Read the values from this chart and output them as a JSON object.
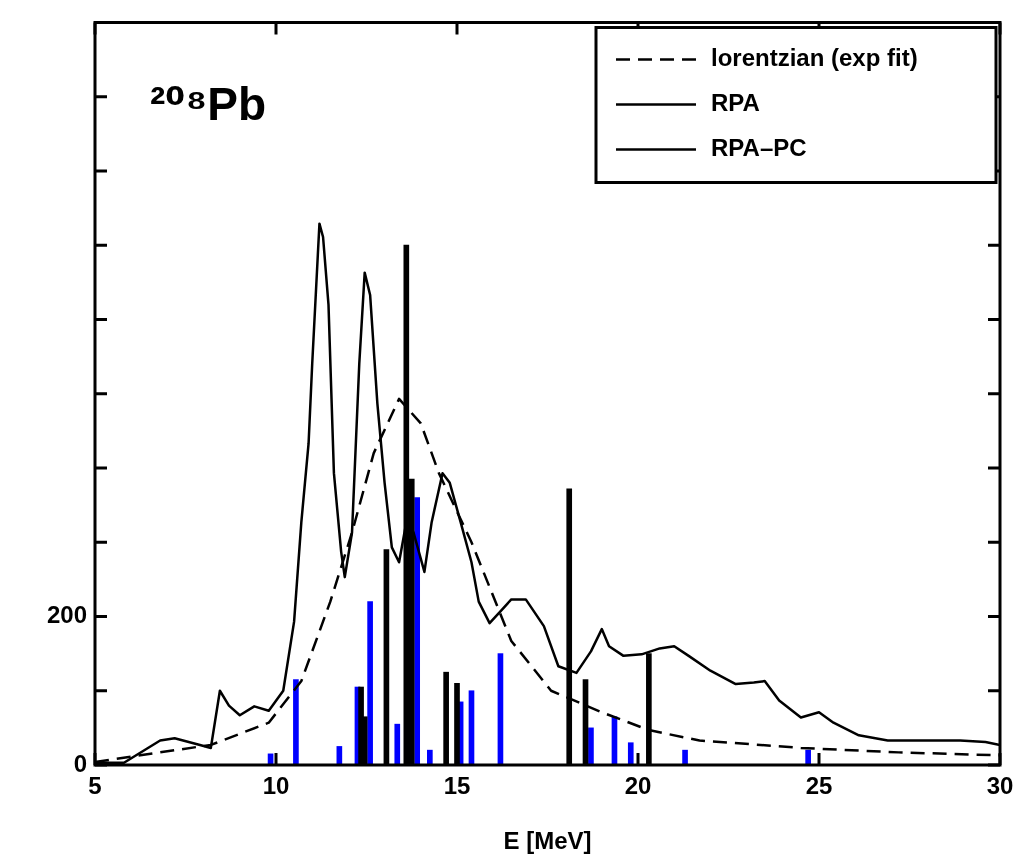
{
  "chart_data": {
    "type": "line",
    "title": "²⁰⁸Pb",
    "xlabel": "E [MeV]",
    "xlim": [
      5,
      30
    ],
    "xticks": [
      5,
      10,
      15,
      20,
      25,
      30
    ],
    "ylim": [
      0,
      1000
    ],
    "yticks": [
      0,
      {
        "value": 100,
        "label": null
      },
      200,
      {
        "value": 300,
        "label": null
      },
      {
        "value": 400,
        "label": null
      },
      {
        "value": 500,
        "label": null
      },
      {
        "value": 600,
        "label": null
      },
      {
        "value": 700,
        "label": null
      },
      {
        "value": 800,
        "label": null
      },
      {
        "value": 900,
        "label": null
      }
    ],
    "grid": false,
    "legend": "top right",
    "marker": "none",
    "series": [
      {
        "name": "lorentzian (exp fit)",
        "line_style": "dashed",
        "color": "#000000",
        "x": [
          5,
          6.8,
          8.2,
          9.8,
          10.7,
          11.5,
          12.1,
          12.7,
          13.4,
          14.0,
          14.5,
          15.4,
          16.5,
          17.6,
          19.0,
          20.3,
          21.7,
          24.5,
          27.2,
          30
        ],
        "values": [
          4,
          17,
          27,
          57,
          113,
          220,
          313,
          420,
          493,
          460,
          393,
          300,
          167,
          100,
          71,
          47,
          33,
          23,
          17,
          13
        ]
      },
      {
        "name": "RPA",
        "type": "bar",
        "color": "#000000",
        "x": [
          12.35,
          12.45,
          13.05,
          13.6,
          13.75,
          14.7,
          15.0,
          18.1,
          18.55,
          20.3
        ],
        "values": [
          105,
          65,
          290,
          700,
          385,
          125,
          110,
          372,
          115,
          150
        ]
      },
      {
        "name": "RPA–PC",
        "line_style": "solid",
        "color": "#000000",
        "x": [
          5,
          5.8,
          6.8,
          7.2,
          7.9,
          8.2,
          8.45,
          8.7,
          9.0,
          9.4,
          9.8,
          10.2,
          10.5,
          10.7,
          10.9,
          11.0,
          11.2,
          11.3,
          11.45,
          11.6,
          11.8,
          11.9,
          12.1,
          12.3,
          12.45,
          12.6,
          12.8,
          13.0,
          13.2,
          13.4,
          13.6,
          13.8,
          14.1,
          14.3,
          14.6,
          14.8,
          15.1,
          15.4,
          15.6,
          15.9,
          16.2,
          16.5,
          16.9,
          17.4,
          17.8,
          18.3,
          18.7,
          19.0,
          19.2,
          19.6,
          20.1,
          20.6,
          21.0,
          21.4,
          22.0,
          22.7,
          23.2,
          23.5,
          23.9,
          24.5,
          25.0,
          25.4,
          26.1,
          26.9,
          28.1,
          28.9,
          29.6,
          30
        ],
        "values": [
          3,
          3,
          33,
          36,
          27,
          23,
          100,
          80,
          67,
          79,
          73,
          100,
          193,
          327,
          433,
          540,
          729,
          711,
          620,
          393,
          287,
          253,
          313,
          540,
          663,
          633,
          487,
          380,
          293,
          273,
          327,
          313,
          260,
          327,
          393,
          380,
          327,
          273,
          220,
          191,
          207,
          223,
          223,
          187,
          133,
          124,
          153,
          183,
          160,
          147,
          149,
          157,
          160,
          147,
          127,
          109,
          111,
          113,
          87,
          64,
          71,
          57,
          40,
          33,
          33,
          33,
          31,
          27
        ]
      },
      {
        "type": "bar",
        "color": "#0000ff",
        "x": [
          9.85,
          10.55,
          11.75,
          12.25,
          12.6,
          13.35,
          13.9,
          14.25,
          15.1,
          15.4,
          16.2,
          18.7,
          19.35,
          19.8,
          21.3,
          24.7
        ],
        "values": [
          15,
          115,
          25,
          105,
          220,
          55,
          360,
          20,
          85,
          100,
          150,
          50,
          65,
          30,
          20,
          20
        ]
      }
    ]
  }
}
